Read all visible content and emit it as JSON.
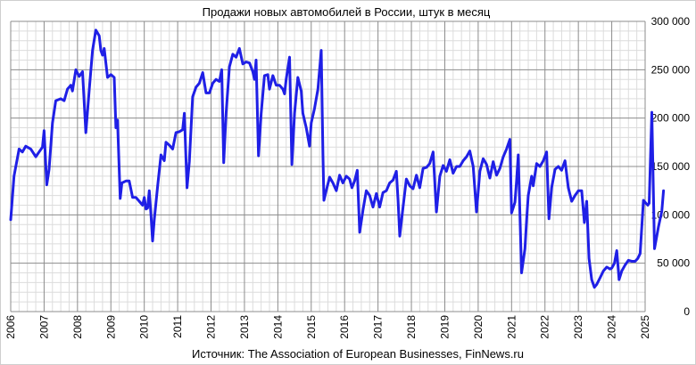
{
  "chart_data": {
    "type": "line",
    "title": "Продажи новых автомобилей в России, штук в месяц",
    "source": "Источник: The Association of European Businesses, FinNews.ru",
    "x_tick_labels": [
      "2006",
      "2007",
      "2008",
      "2009",
      "2010",
      "2011",
      "2012",
      "2013",
      "2014",
      "2015",
      "2016",
      "2017",
      "2018",
      "2019",
      "2020",
      "2021",
      "2022",
      "2023",
      "2024",
      "2025"
    ],
    "y_tick_labels": [
      "0",
      "50 000",
      "100 000",
      "150 000",
      "200 000",
      "250 000",
      "300 000"
    ],
    "xlim": [
      2006,
      2025
    ],
    "ylim": [
      0,
      300000
    ],
    "y_ticks": [
      0,
      50000,
      100000,
      150000,
      200000,
      250000,
      300000
    ],
    "grid": true,
    "series": [
      {
        "color": "#1f1fe6",
        "points": [
          [
            2006.0,
            95000
          ],
          [
            2006.1,
            140000
          ],
          [
            2006.25,
            168000
          ],
          [
            2006.35,
            165000
          ],
          [
            2006.45,
            171000
          ],
          [
            2006.6,
            168000
          ],
          [
            2006.75,
            160000
          ],
          [
            2006.85,
            165000
          ],
          [
            2006.95,
            170000
          ],
          [
            2007.0,
            187000
          ],
          [
            2007.08,
            131000
          ],
          [
            2007.15,
            147000
          ],
          [
            2007.25,
            195000
          ],
          [
            2007.35,
            218000
          ],
          [
            2007.5,
            220000
          ],
          [
            2007.6,
            218000
          ],
          [
            2007.7,
            230000
          ],
          [
            2007.8,
            234000
          ],
          [
            2007.85,
            228000
          ],
          [
            2007.95,
            250000
          ],
          [
            2008.05,
            243000
          ],
          [
            2008.15,
            248000
          ],
          [
            2008.25,
            185000
          ],
          [
            2008.35,
            228000
          ],
          [
            2008.45,
            270000
          ],
          [
            2008.55,
            291000
          ],
          [
            2008.65,
            285000
          ],
          [
            2008.7,
            270000
          ],
          [
            2008.75,
            265000
          ],
          [
            2008.8,
            272000
          ],
          [
            2008.9,
            242000
          ],
          [
            2009.0,
            245000
          ],
          [
            2009.1,
            242000
          ],
          [
            2009.15,
            190000
          ],
          [
            2009.2,
            198000
          ],
          [
            2009.28,
            117000
          ],
          [
            2009.33,
            133000
          ],
          [
            2009.45,
            135000
          ],
          [
            2009.55,
            135000
          ],
          [
            2009.65,
            118000
          ],
          [
            2009.75,
            118000
          ],
          [
            2009.85,
            114000
          ],
          [
            2009.95,
            110000
          ],
          [
            2010.0,
            118000
          ],
          [
            2010.05,
            106000
          ],
          [
            2010.1,
            107000
          ],
          [
            2010.15,
            125000
          ],
          [
            2010.2,
            100000
          ],
          [
            2010.25,
            73000
          ],
          [
            2010.3,
            95000
          ],
          [
            2010.4,
            130000
          ],
          [
            2010.5,
            162000
          ],
          [
            2010.6,
            156000
          ],
          [
            2010.65,
            175000
          ],
          [
            2010.75,
            172000
          ],
          [
            2010.85,
            168000
          ],
          [
            2010.95,
            185000
          ],
          [
            2011.05,
            186000
          ],
          [
            2011.15,
            188000
          ],
          [
            2011.2,
            205000
          ],
          [
            2011.28,
            128000
          ],
          [
            2011.35,
            155000
          ],
          [
            2011.45,
            222000
          ],
          [
            2011.55,
            232000
          ],
          [
            2011.65,
            236000
          ],
          [
            2011.75,
            247000
          ],
          [
            2011.85,
            226000
          ],
          [
            2011.95,
            226000
          ],
          [
            2012.05,
            236000
          ],
          [
            2012.15,
            240000
          ],
          [
            2012.25,
            238000
          ],
          [
            2012.32,
            250000
          ],
          [
            2012.38,
            154000
          ],
          [
            2012.45,
            205000
          ],
          [
            2012.55,
            253000
          ],
          [
            2012.65,
            266000
          ],
          [
            2012.75,
            263000
          ],
          [
            2012.85,
            272000
          ],
          [
            2012.95,
            256000
          ],
          [
            2013.05,
            258000
          ],
          [
            2013.15,
            257000
          ],
          [
            2013.25,
            248000
          ],
          [
            2013.3,
            240000
          ],
          [
            2013.35,
            260000
          ],
          [
            2013.42,
            161000
          ],
          [
            2013.5,
            205000
          ],
          [
            2013.6,
            244000
          ],
          [
            2013.7,
            245000
          ],
          [
            2013.75,
            230000
          ],
          [
            2013.85,
            244000
          ],
          [
            2013.95,
            234000
          ],
          [
            2014.05,
            234000
          ],
          [
            2014.15,
            230000
          ],
          [
            2014.2,
            225000
          ],
          [
            2014.25,
            240000
          ],
          [
            2014.35,
            263000
          ],
          [
            2014.42,
            152000
          ],
          [
            2014.5,
            205000
          ],
          [
            2014.6,
            242000
          ],
          [
            2014.7,
            228000
          ],
          [
            2014.75,
            205000
          ],
          [
            2014.85,
            190000
          ],
          [
            2014.95,
            171000
          ],
          [
            2015.0,
            195000
          ],
          [
            2015.1,
            210000
          ],
          [
            2015.2,
            230000
          ],
          [
            2015.3,
            270000
          ],
          [
            2015.35,
            163000
          ],
          [
            2015.38,
            115000
          ],
          [
            2015.45,
            125000
          ],
          [
            2015.55,
            139000
          ],
          [
            2015.65,
            133000
          ],
          [
            2015.75,
            125000
          ],
          [
            2015.85,
            141000
          ],
          [
            2015.95,
            133000
          ],
          [
            2016.05,
            140000
          ],
          [
            2016.15,
            137000
          ],
          [
            2016.22,
            128000
          ],
          [
            2016.3,
            135000
          ],
          [
            2016.38,
            146000
          ],
          [
            2016.45,
            82000
          ],
          [
            2016.55,
            105000
          ],
          [
            2016.65,
            125000
          ],
          [
            2016.75,
            120000
          ],
          [
            2016.85,
            108000
          ],
          [
            2016.95,
            122000
          ],
          [
            2017.05,
            108000
          ],
          [
            2017.15,
            123000
          ],
          [
            2017.25,
            125000
          ],
          [
            2017.35,
            133000
          ],
          [
            2017.45,
            136000
          ],
          [
            2017.55,
            145000
          ],
          [
            2017.6,
            115000
          ],
          [
            2017.65,
            78000
          ],
          [
            2017.75,
            108000
          ],
          [
            2017.85,
            137000
          ],
          [
            2017.95,
            130000
          ],
          [
            2018.05,
            127000
          ],
          [
            2018.15,
            141000
          ],
          [
            2018.25,
            128000
          ],
          [
            2018.35,
            148000
          ],
          [
            2018.45,
            149000
          ],
          [
            2018.55,
            153000
          ],
          [
            2018.65,
            165000
          ],
          [
            2018.75,
            103000
          ],
          [
            2018.85,
            140000
          ],
          [
            2018.95,
            151000
          ],
          [
            2019.05,
            145000
          ],
          [
            2019.15,
            157000
          ],
          [
            2019.25,
            143000
          ],
          [
            2019.35,
            150000
          ],
          [
            2019.45,
            150000
          ],
          [
            2019.55,
            156000
          ],
          [
            2019.65,
            160000
          ],
          [
            2019.75,
            166000
          ],
          [
            2019.85,
            150000
          ],
          [
            2019.95,
            103000
          ],
          [
            2020.05,
            145000
          ],
          [
            2020.15,
            158000
          ],
          [
            2020.25,
            152000
          ],
          [
            2020.35,
            138000
          ],
          [
            2020.45,
            155000
          ],
          [
            2020.55,
            141000
          ],
          [
            2020.65,
            148000
          ],
          [
            2020.75,
            160000
          ],
          [
            2020.85,
            168000
          ],
          [
            2020.95,
            178000
          ],
          [
            2021.0,
            102000
          ],
          [
            2021.1,
            113000
          ],
          [
            2021.15,
            135000
          ],
          [
            2021.2,
            162000
          ],
          [
            2021.25,
            100000
          ],
          [
            2021.3,
            40000
          ],
          [
            2021.4,
            65000
          ],
          [
            2021.45,
            95000
          ],
          [
            2021.5,
            120000
          ],
          [
            2021.6,
            140000
          ],
          [
            2021.65,
            130000
          ],
          [
            2021.75,
            153000
          ],
          [
            2021.85,
            150000
          ],
          [
            2021.95,
            156000
          ],
          [
            2022.05,
            165000
          ],
          [
            2022.12,
            96000
          ],
          [
            2022.2,
            128000
          ],
          [
            2022.3,
            147000
          ],
          [
            2022.4,
            150000
          ],
          [
            2022.5,
            146000
          ],
          [
            2022.6,
            156000
          ],
          [
            2022.7,
            128000
          ],
          [
            2022.8,
            114000
          ],
          [
            2022.9,
            120000
          ],
          [
            2023.0,
            125000
          ],
          [
            2023.1,
            125000
          ],
          [
            2023.18,
            92000
          ],
          [
            2023.25,
            114000
          ],
          [
            2023.32,
            55000
          ],
          [
            2023.4,
            33000
          ],
          [
            2023.48,
            25000
          ],
          [
            2023.55,
            28000
          ],
          [
            2023.65,
            35000
          ],
          [
            2023.75,
            42000
          ],
          [
            2023.85,
            46000
          ],
          [
            2023.95,
            44000
          ],
          [
            2024.0,
            45000
          ],
          [
            2024.08,
            50000
          ],
          [
            2024.15,
            63000
          ],
          [
            2024.22,
            33000
          ],
          [
            2024.3,
            42000
          ],
          [
            2024.4,
            48000
          ],
          [
            2024.5,
            53000
          ],
          [
            2024.6,
            52000
          ],
          [
            2024.7,
            52000
          ],
          [
            2024.78,
            55000
          ],
          [
            2024.85,
            60000
          ],
          [
            2024.95,
            115000
          ],
          [
            2025.0,
            113000
          ],
          [
            2025.08,
            110000
          ],
          [
            2025.12,
            112000
          ],
          [
            2025.2,
            206000
          ],
          [
            2025.28,
            65000
          ],
          [
            2025.4,
            88000
          ],
          [
            2025.5,
            104000
          ],
          [
            2025.55,
            125000
          ]
        ]
      }
    ]
  }
}
